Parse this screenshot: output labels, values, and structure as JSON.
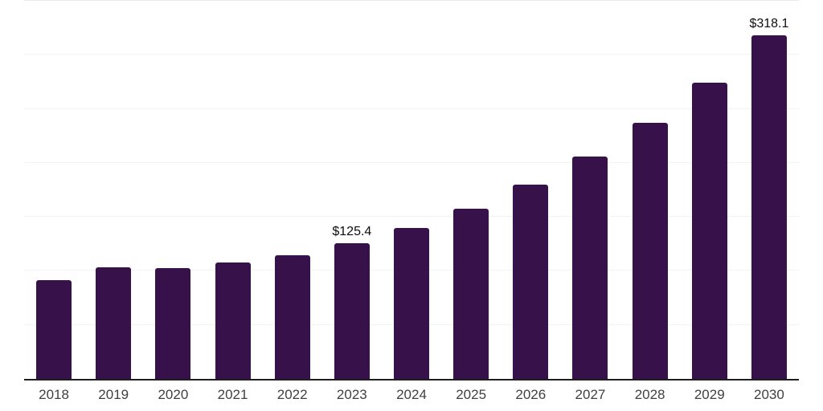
{
  "chart_data": {
    "type": "bar",
    "title": "",
    "xlabel": "",
    "ylabel": "",
    "categories": [
      "2018",
      "2019",
      "2020",
      "2021",
      "2022",
      "2023",
      "2024",
      "2025",
      "2026",
      "2027",
      "2028",
      "2029",
      "2030"
    ],
    "values": [
      91.4,
      103.3,
      102.9,
      107.4,
      114.5,
      125.4,
      139.7,
      157.6,
      179.9,
      205.9,
      237.1,
      274.3,
      318.1
    ],
    "data_labels": [
      null,
      null,
      null,
      null,
      null,
      "$125.4",
      null,
      null,
      null,
      null,
      null,
      null,
      "$318.1"
    ],
    "value_prefix": "$",
    "ylim": [
      0,
      350
    ],
    "grid": true,
    "gridline_step": 50,
    "legend": null,
    "colors": {
      "bar": "#36114A",
      "axis_line": "#1f1f1f",
      "gridline": "#f3f3f3",
      "plot_top_line": "#e9e9e9",
      "value_label": "#0d0d0d",
      "tick_label": "#404040",
      "background": "#ffffff"
    }
  }
}
